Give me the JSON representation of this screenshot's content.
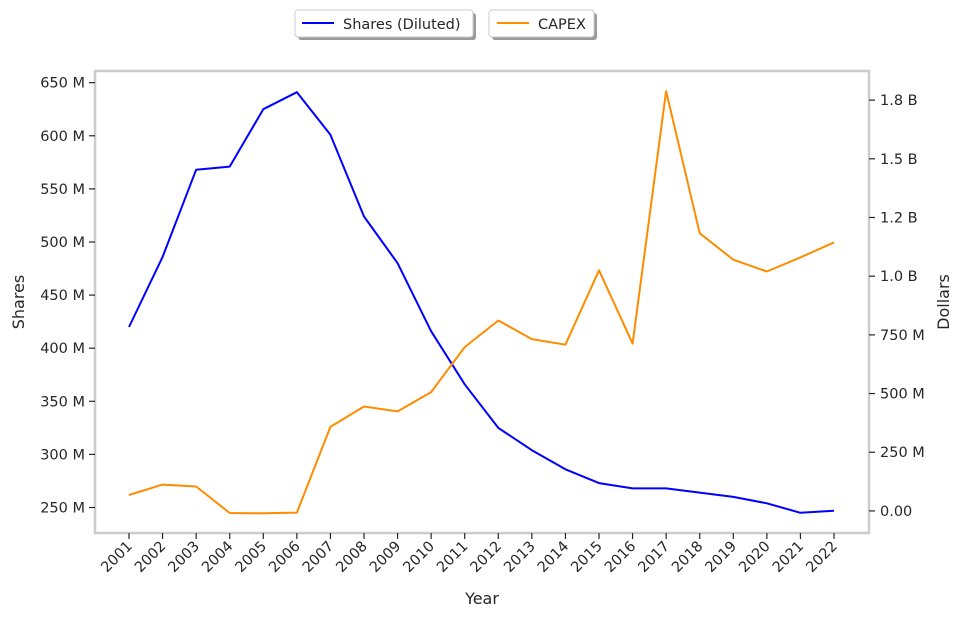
{
  "chart_data": {
    "type": "line",
    "xlabel": "Year",
    "ylabel_left": "Shares",
    "ylabel_right": "Dollars",
    "categories": [
      "2001",
      "2002",
      "2003",
      "2004",
      "2005",
      "2006",
      "2007",
      "2008",
      "2009",
      "2010",
      "2011",
      "2012",
      "2013",
      "2014",
      "2015",
      "2016",
      "2017",
      "2018",
      "2019",
      "2020",
      "2021",
      "2022"
    ],
    "series": [
      {
        "name": "Shares (Diluted)",
        "axis": "left",
        "color": "#0000ff",
        "values": [
          420,
          486,
          568,
          571,
          625,
          641,
          601,
          524,
          480,
          416,
          366,
          325,
          304,
          286,
          273,
          268,
          268,
          264,
          260,
          254,
          245,
          247
        ]
      },
      {
        "name": "CAPEX",
        "axis": "right",
        "color": "#ff8c00",
        "values": [
          0.068,
          0.112,
          0.104,
          -0.009,
          -0.01,
          -0.007,
          0.358,
          0.445,
          0.424,
          0.506,
          0.698,
          0.811,
          0.732,
          0.708,
          1.025,
          0.713,
          1.788,
          1.183,
          1.07,
          1.02,
          1.08,
          1.144
        ]
      }
    ],
    "left_axis": {
      "ylim": [
        226,
        661
      ],
      "ticks": [
        250,
        300,
        350,
        400,
        450,
        500,
        550,
        600,
        650
      ],
      "tick_labels": [
        "250 M",
        "300 M",
        "350 M",
        "400 M",
        "450 M",
        "500 M",
        "550 M",
        "600 M",
        "650 M"
      ]
    },
    "right_axis": {
      "ylim": [
        -0.094,
        1.874
      ],
      "ticks": [
        0,
        0.25,
        0.5,
        0.75,
        1.0,
        1.25,
        1.5,
        1.75
      ],
      "tick_labels": [
        "0.00",
        "250 M",
        "500 M",
        "750 M",
        "1.0 B",
        "1.2 B",
        "1.5 B",
        "1.8 B"
      ]
    },
    "legend": {
      "placement": "top-center",
      "entries": [
        "Shares (Diluted)",
        "CAPEX"
      ]
    },
    "grid": false
  }
}
